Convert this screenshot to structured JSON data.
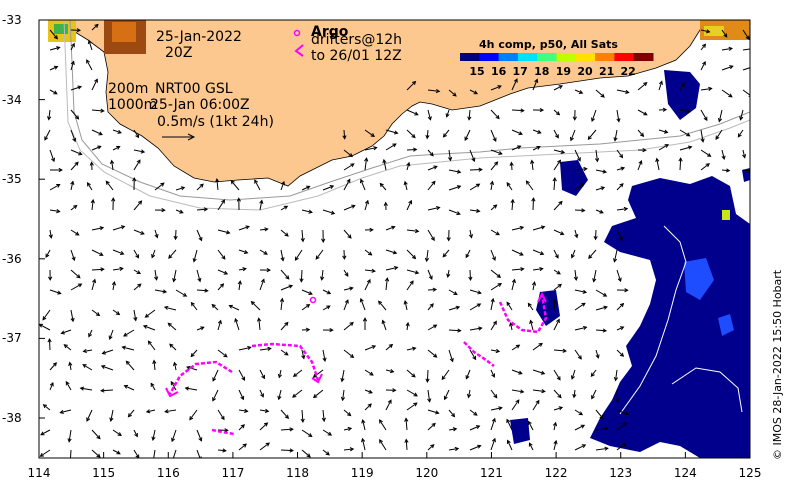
{
  "date": {
    "day": "25-Jan-2022",
    "hour": "20Z"
  },
  "product": {
    "depth_200": "200m",
    "product_name": "NRT00 GSL",
    "depth_1000": "1000m",
    "analysis_time": "25-Jan 06:00Z"
  },
  "scale": {
    "label": "0.5m/s (1kt 24h)"
  },
  "argo": {
    "label": "Argo"
  },
  "drifters": {
    "label": "drifters@12h",
    "until": "to 26/01 12Z"
  },
  "colorbar": {
    "title": "4h comp, p50, All Sats",
    "ticks": [
      "15",
      "16",
      "17",
      "18",
      "19",
      "20",
      "21",
      "22"
    ],
    "colors": [
      "#00007f",
      "#0000ff",
      "#0080ff",
      "#00e0ff",
      "#40ff80",
      "#c0ff00",
      "#ffe000",
      "#ff8000",
      "#ff0000",
      "#7f0000"
    ]
  },
  "x_axis": {
    "ticks": [
      "114",
      "115",
      "116",
      "117",
      "118",
      "119",
      "120",
      "121",
      "122",
      "123",
      "124",
      "125"
    ]
  },
  "y_axis": {
    "ticks": [
      "-33",
      "-34",
      "-35",
      "-36",
      "-37",
      "-38"
    ]
  },
  "credit": "© IMOS 28-Jan-2022 15:50 Hobart",
  "colors": {
    "land": "#fcc88f",
    "ocean": "#ffffff",
    "drifter": "#ff00ff",
    "cold_sst": "#00008c"
  }
}
